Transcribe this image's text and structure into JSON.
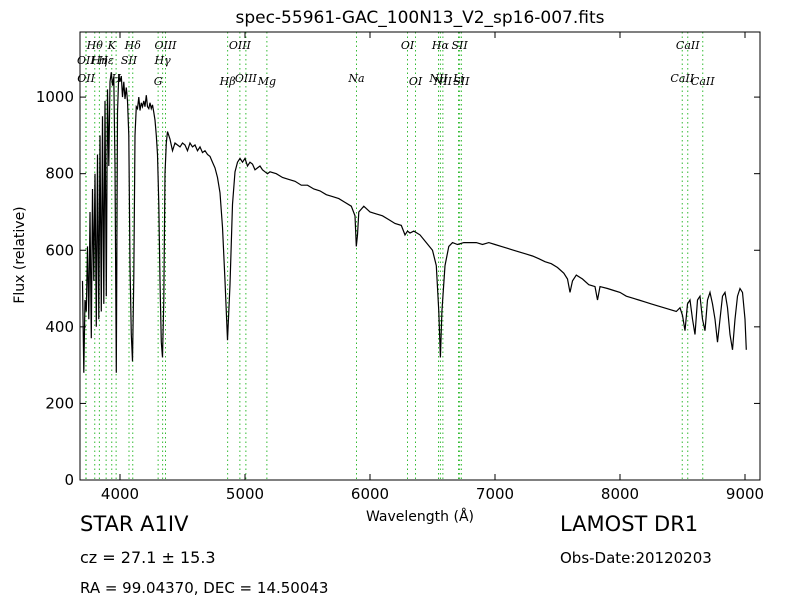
{
  "chart_data": {
    "type": "line",
    "title": "spec-55961-GAC_100N13_V2_sp16-007.fits",
    "xlabel": "Wavelength (Å)",
    "ylabel": "Flux (relative)",
    "xlim": [
      3680,
      9120
    ],
    "ylim": [
      0,
      1170
    ],
    "x_ticks": [
      4000,
      5000,
      6000,
      7000,
      8000,
      9000
    ],
    "y_ticks": [
      0,
      200,
      400,
      600,
      800,
      1000
    ],
    "grid": false,
    "series": [
      {
        "points": [
          [
            3700,
            520
          ],
          [
            3710,
            280
          ],
          [
            3720,
            470
          ],
          [
            3730,
            440
          ],
          [
            3740,
            610
          ],
          [
            3750,
            420
          ],
          [
            3760,
            700
          ],
          [
            3770,
            370
          ],
          [
            3780,
            760
          ],
          [
            3790,
            520
          ],
          [
            3800,
            800
          ],
          [
            3810,
            400
          ],
          [
            3820,
            850
          ],
          [
            3830,
            420
          ],
          [
            3840,
            900
          ],
          [
            3850,
            440
          ],
          [
            3860,
            950
          ],
          [
            3870,
            460
          ],
          [
            3880,
            990
          ],
          [
            3890,
            480
          ],
          [
            3900,
            1020
          ],
          [
            3910,
            820
          ],
          [
            3920,
            1040
          ],
          [
            3930,
            1065
          ],
          [
            3940,
            1030
          ],
          [
            3950,
            1050
          ],
          [
            3960,
            820
          ],
          [
            3970,
            280
          ],
          [
            3980,
            960
          ],
          [
            3990,
            1060
          ],
          [
            4000,
            1040
          ],
          [
            4010,
            1055
          ],
          [
            4020,
            1000
          ],
          [
            4030,
            1040
          ],
          [
            4040,
            995
          ],
          [
            4050,
            1025
          ],
          [
            4060,
            990
          ],
          [
            4070,
            900
          ],
          [
            4080,
            560
          ],
          [
            4090,
            380
          ],
          [
            4100,
            310
          ],
          [
            4110,
            530
          ],
          [
            4120,
            900
          ],
          [
            4130,
            975
          ],
          [
            4140,
            970
          ],
          [
            4150,
            1000
          ],
          [
            4160,
            965
          ],
          [
            4170,
            985
          ],
          [
            4180,
            975
          ],
          [
            4190,
            990
          ],
          [
            4200,
            975
          ],
          [
            4210,
            1005
          ],
          [
            4220,
            975
          ],
          [
            4230,
            970
          ],
          [
            4240,
            985
          ],
          [
            4250,
            970
          ],
          [
            4260,
            980
          ],
          [
            4270,
            960
          ],
          [
            4280,
            940
          ],
          [
            4290,
            900
          ],
          [
            4300,
            850
          ],
          [
            4310,
            720
          ],
          [
            4320,
            520
          ],
          [
            4330,
            360
          ],
          [
            4340,
            320
          ],
          [
            4350,
            470
          ],
          [
            4360,
            800
          ],
          [
            4370,
            880
          ],
          [
            4380,
            910
          ],
          [
            4400,
            890
          ],
          [
            4420,
            860
          ],
          [
            4440,
            880
          ],
          [
            4460,
            875
          ],
          [
            4480,
            870
          ],
          [
            4500,
            880
          ],
          [
            4520,
            875
          ],
          [
            4540,
            860
          ],
          [
            4560,
            880
          ],
          [
            4580,
            870
          ],
          [
            4600,
            875
          ],
          [
            4620,
            860
          ],
          [
            4640,
            870
          ],
          [
            4660,
            855
          ],
          [
            4680,
            860
          ],
          [
            4700,
            850
          ],
          [
            4720,
            845
          ],
          [
            4740,
            830
          ],
          [
            4760,
            815
          ],
          [
            4780,
            790
          ],
          [
            4800,
            750
          ],
          [
            4820,
            660
          ],
          [
            4840,
            520
          ],
          [
            4860,
            365
          ],
          [
            4880,
            510
          ],
          [
            4900,
            720
          ],
          [
            4920,
            805
          ],
          [
            4940,
            830
          ],
          [
            4960,
            840
          ],
          [
            4980,
            830
          ],
          [
            5000,
            840
          ],
          [
            5020,
            820
          ],
          [
            5040,
            830
          ],
          [
            5060,
            825
          ],
          [
            5080,
            810
          ],
          [
            5100,
            815
          ],
          [
            5120,
            820
          ],
          [
            5140,
            810
          ],
          [
            5160,
            805
          ],
          [
            5180,
            800
          ],
          [
            5200,
            805
          ],
          [
            5250,
            800
          ],
          [
            5300,
            790
          ],
          [
            5350,
            785
          ],
          [
            5400,
            780
          ],
          [
            5450,
            770
          ],
          [
            5500,
            770
          ],
          [
            5550,
            760
          ],
          [
            5600,
            755
          ],
          [
            5650,
            745
          ],
          [
            5700,
            740
          ],
          [
            5750,
            735
          ],
          [
            5800,
            725
          ],
          [
            5850,
            715
          ],
          [
            5880,
            690
          ],
          [
            5890,
            610
          ],
          [
            5900,
            640
          ],
          [
            5910,
            700
          ],
          [
            5950,
            715
          ],
          [
            6000,
            700
          ],
          [
            6050,
            695
          ],
          [
            6100,
            690
          ],
          [
            6150,
            680
          ],
          [
            6200,
            670
          ],
          [
            6250,
            665
          ],
          [
            6280,
            640
          ],
          [
            6300,
            650
          ],
          [
            6320,
            645
          ],
          [
            6350,
            650
          ],
          [
            6400,
            640
          ],
          [
            6450,
            620
          ],
          [
            6500,
            600
          ],
          [
            6530,
            560
          ],
          [
            6550,
            440
          ],
          [
            6563,
            320
          ],
          [
            6575,
            440
          ],
          [
            6600,
            560
          ],
          [
            6630,
            610
          ],
          [
            6660,
            620
          ],
          [
            6700,
            615
          ],
          [
            6750,
            620
          ],
          [
            6800,
            620
          ],
          [
            6850,
            620
          ],
          [
            6900,
            615
          ],
          [
            6950,
            620
          ],
          [
            7000,
            615
          ],
          [
            7050,
            610
          ],
          [
            7100,
            605
          ],
          [
            7150,
            600
          ],
          [
            7200,
            595
          ],
          [
            7250,
            590
          ],
          [
            7300,
            585
          ],
          [
            7350,
            578
          ],
          [
            7400,
            570
          ],
          [
            7450,
            565
          ],
          [
            7500,
            555
          ],
          [
            7550,
            540
          ],
          [
            7580,
            525
          ],
          [
            7600,
            490
          ],
          [
            7620,
            520
          ],
          [
            7650,
            535
          ],
          [
            7700,
            525
          ],
          [
            7750,
            510
          ],
          [
            7800,
            505
          ],
          [
            7820,
            470
          ],
          [
            7840,
            505
          ],
          [
            7900,
            500
          ],
          [
            7950,
            495
          ],
          [
            8000,
            490
          ],
          [
            8050,
            480
          ],
          [
            8100,
            475
          ],
          [
            8150,
            470
          ],
          [
            8200,
            465
          ],
          [
            8250,
            460
          ],
          [
            8300,
            455
          ],
          [
            8350,
            450
          ],
          [
            8400,
            445
          ],
          [
            8450,
            440
          ],
          [
            8480,
            450
          ],
          [
            8500,
            430
          ],
          [
            8520,
            390
          ],
          [
            8540,
            460
          ],
          [
            8560,
            470
          ],
          [
            8580,
            420
          ],
          [
            8600,
            380
          ],
          [
            8620,
            470
          ],
          [
            8640,
            480
          ],
          [
            8660,
            420
          ],
          [
            8680,
            390
          ],
          [
            8700,
            470
          ],
          [
            8720,
            490
          ],
          [
            8740,
            460
          ],
          [
            8760,
            420
          ],
          [
            8780,
            360
          ],
          [
            8800,
            420
          ],
          [
            8820,
            480
          ],
          [
            8840,
            490
          ],
          [
            8860,
            450
          ],
          [
            8880,
            380
          ],
          [
            8900,
            340
          ],
          [
            8920,
            420
          ],
          [
            8940,
            480
          ],
          [
            8960,
            500
          ],
          [
            8980,
            490
          ],
          [
            9000,
            420
          ],
          [
            9010,
            340
          ]
        ]
      }
    ],
    "line_markers": [
      {
        "wavelength": 3727,
        "label": "OII",
        "row": 1
      },
      {
        "wavelength": 3729,
        "label": "OII",
        "row": 2
      },
      {
        "wavelength": 3798,
        "label": "Hθ",
        "row": 0
      },
      {
        "wavelength": 3835,
        "label": "Hη",
        "row": 1
      },
      {
        "wavelength": 3889,
        "label": "Hε",
        "row": 1
      },
      {
        "wavelength": 3934,
        "label": "K",
        "row": 0
      },
      {
        "wavelength": 3969,
        "label": "H",
        "row": 2
      },
      {
        "wavelength": 4072,
        "label": "SII",
        "row": 1
      },
      {
        "wavelength": 4102,
        "label": "Hδ",
        "row": 0
      },
      {
        "wavelength": 4305,
        "label": "G",
        "row": 3
      },
      {
        "wavelength": 4341,
        "label": "Hγ",
        "row": 1
      },
      {
        "wavelength": 4364,
        "label": "OIII",
        "row": 0
      },
      {
        "wavelength": 4861,
        "label": "Hβ",
        "row": 3
      },
      {
        "wavelength": 4959,
        "label": "OIII",
        "row": 0
      },
      {
        "wavelength": 5007,
        "label": "OIII",
        "row": 2
      },
      {
        "wavelength": 5175,
        "label": "Mg",
        "row": 3
      },
      {
        "wavelength": 5892,
        "label": "Na",
        "row": 2
      },
      {
        "wavelength": 6300,
        "label": "OI",
        "row": 0
      },
      {
        "wavelength": 6364,
        "label": "OI",
        "row": 3
      },
      {
        "wavelength": 6548,
        "label": "NII",
        "row": 2
      },
      {
        "wavelength": 6563,
        "label": "Hα",
        "row": 0
      },
      {
        "wavelength": 6583,
        "label": "NII",
        "row": 3
      },
      {
        "wavelength": 6717,
        "label": "SII",
        "row": 0
      },
      {
        "wavelength": 6708,
        "label": "Li",
        "row": 2
      },
      {
        "wavelength": 6731,
        "label": "SII",
        "row": 3
      },
      {
        "wavelength": 8498,
        "label": "CaII",
        "row": 2
      },
      {
        "wavelength": 8542,
        "label": "CaII",
        "row": 0
      },
      {
        "wavelength": 8662,
        "label": "CaII",
        "row": 3
      }
    ],
    "colors": {
      "line": "#000000",
      "markers": "#33bb33"
    }
  },
  "info": {
    "star_label": "STAR   A1IV",
    "cz": "cz = 27.1  ± 15.3",
    "radec": "RA = 99.04370, DEC = 14.50043",
    "survey": "LAMOST DR1",
    "obs_date": "Obs-Date:20120203"
  }
}
